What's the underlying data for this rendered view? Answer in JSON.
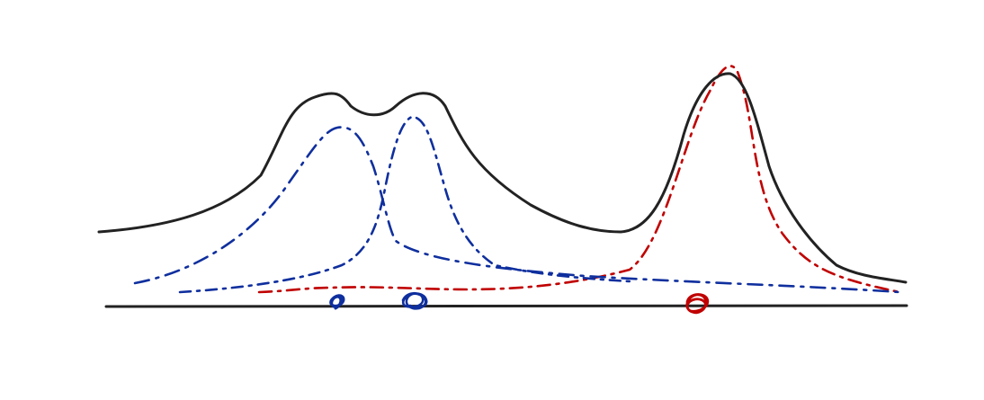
{
  "diagram": {
    "description_visible_text": "",
    "colors": {
      "sum_curve": "#222222",
      "blue_components": "#0f2f9e",
      "red_component": "#c00000",
      "baseline": "#222222"
    },
    "components": [
      {
        "name": "",
        "color": "#0f2f9e",
        "style": "dash-dot"
      },
      {
        "name": "",
        "color": "#0f2f9e",
        "style": "dash-dot"
      },
      {
        "name": "",
        "color": "#c00000",
        "style": "dash-dot"
      }
    ],
    "markers": [
      {
        "color": "#0f2f9e"
      },
      {
        "color": "#0f2f9e"
      },
      {
        "color": "#c00000"
      }
    ]
  }
}
